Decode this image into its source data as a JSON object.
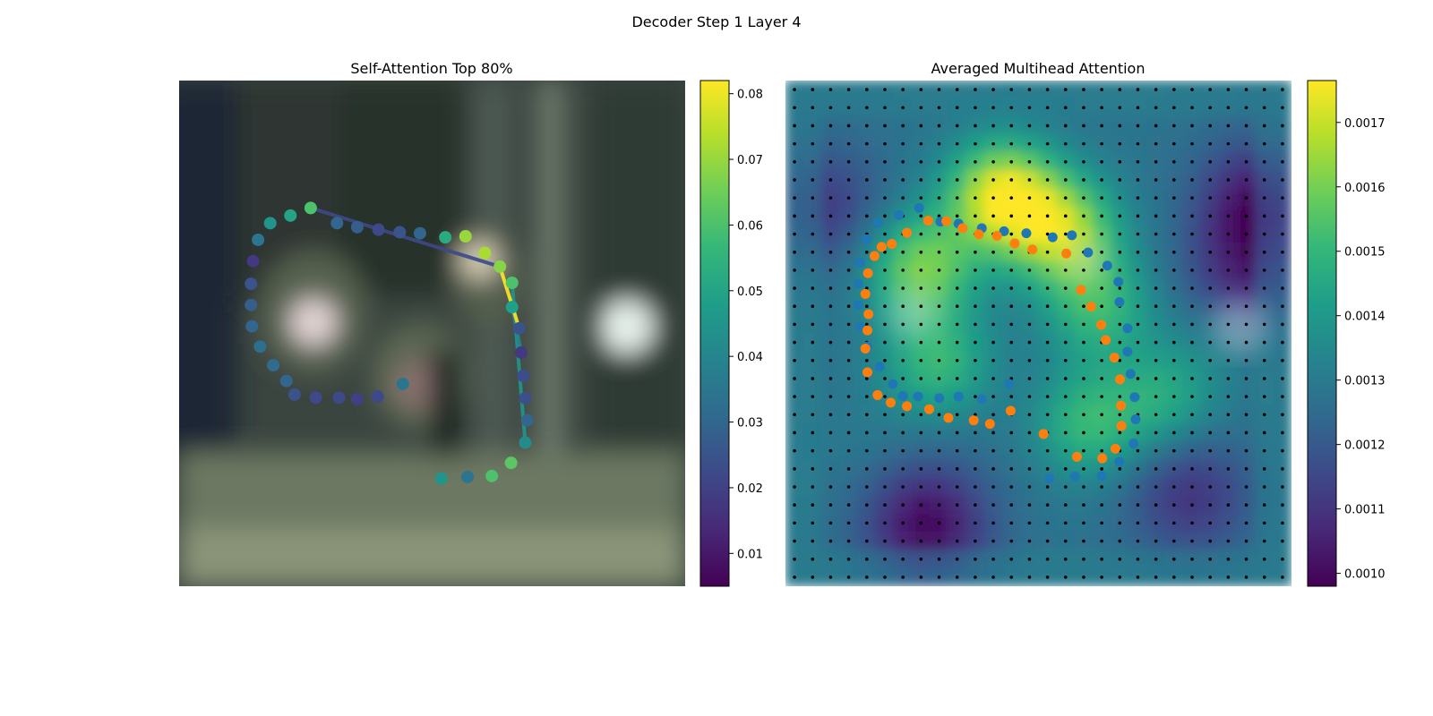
{
  "figure": {
    "suptitle": "Decoder Step 1 Layer 4"
  },
  "colors": {
    "viridis": [
      "#440154",
      "#482878",
      "#3e4989",
      "#31688e",
      "#26828e",
      "#1f9e89",
      "#35b779",
      "#6ece58",
      "#b5de2b",
      "#fde725"
    ],
    "series_blue": "#1f77b4",
    "series_orange": "#ff7f0e",
    "grid_dot": "#000000",
    "photo_dark": "#2a3330",
    "photo_mid": "#4a5548"
  },
  "chart_data": [
    {
      "type": "scatter",
      "title": "Self-Attention Top 80%",
      "background": "blurred street-scene photo",
      "xlim": [
        0,
        1
      ],
      "ylim": [
        0,
        1
      ],
      "colorbar": {
        "min": 0.005,
        "max": 0.082,
        "ticks": [
          0.01,
          0.02,
          0.03,
          0.04,
          0.05,
          0.06,
          0.07,
          0.08
        ],
        "tick_labels": [
          "0.01",
          "0.02",
          "0.03",
          "0.04",
          "0.05",
          "0.06",
          "0.07",
          "0.08"
        ]
      },
      "points": [
        {
          "x": 0.518,
          "y": 0.787,
          "v": 0.045
        },
        {
          "x": 0.57,
          "y": 0.784,
          "v": 0.035
        },
        {
          "x": 0.618,
          "y": 0.782,
          "v": 0.06
        },
        {
          "x": 0.656,
          "y": 0.756,
          "v": 0.062
        },
        {
          "x": 0.684,
          "y": 0.716,
          "v": 0.042
        },
        {
          "x": 0.688,
          "y": 0.672,
          "v": 0.03
        },
        {
          "x": 0.684,
          "y": 0.628,
          "v": 0.024
        },
        {
          "x": 0.68,
          "y": 0.584,
          "v": 0.023
        },
        {
          "x": 0.676,
          "y": 0.538,
          "v": 0.018
        },
        {
          "x": 0.672,
          "y": 0.49,
          "v": 0.025
        },
        {
          "x": 0.658,
          "y": 0.448,
          "v": 0.048
        },
        {
          "x": 0.658,
          "y": 0.4,
          "v": 0.06
        },
        {
          "x": 0.634,
          "y": 0.368,
          "v": 0.068
        },
        {
          "x": 0.604,
          "y": 0.341,
          "v": 0.072
        },
        {
          "x": 0.566,
          "y": 0.308,
          "v": 0.07
        },
        {
          "x": 0.526,
          "y": 0.31,
          "v": 0.052
        },
        {
          "x": 0.476,
          "y": 0.302,
          "v": 0.03
        },
        {
          "x": 0.436,
          "y": 0.3,
          "v": 0.025
        },
        {
          "x": 0.394,
          "y": 0.295,
          "v": 0.022
        },
        {
          "x": 0.352,
          "y": 0.29,
          "v": 0.028
        },
        {
          "x": 0.312,
          "y": 0.282,
          "v": 0.03
        },
        {
          "x": 0.26,
          "y": 0.252,
          "v": 0.06
        },
        {
          "x": 0.22,
          "y": 0.267,
          "v": 0.05
        },
        {
          "x": 0.18,
          "y": 0.282,
          "v": 0.045
        },
        {
          "x": 0.156,
          "y": 0.315,
          "v": 0.035
        },
        {
          "x": 0.146,
          "y": 0.357,
          "v": 0.018
        },
        {
          "x": 0.142,
          "y": 0.402,
          "v": 0.025
        },
        {
          "x": 0.142,
          "y": 0.444,
          "v": 0.028
        },
        {
          "x": 0.144,
          "y": 0.486,
          "v": 0.03
        },
        {
          "x": 0.16,
          "y": 0.526,
          "v": 0.033
        },
        {
          "x": 0.186,
          "y": 0.563,
          "v": 0.032
        },
        {
          "x": 0.212,
          "y": 0.594,
          "v": 0.03
        },
        {
          "x": 0.228,
          "y": 0.621,
          "v": 0.025
        },
        {
          "x": 0.27,
          "y": 0.627,
          "v": 0.022
        },
        {
          "x": 0.316,
          "y": 0.627,
          "v": 0.022
        },
        {
          "x": 0.352,
          "y": 0.63,
          "v": 0.02
        },
        {
          "x": 0.392,
          "y": 0.625,
          "v": 0.022
        },
        {
          "x": 0.442,
          "y": 0.6,
          "v": 0.035
        }
      ],
      "edges": [
        {
          "from": [
            0.26,
            0.252
          ],
          "to": [
            0.634,
            0.368
          ],
          "v": 0.022
        },
        {
          "from": [
            0.684,
            0.716
          ],
          "to": [
            0.658,
            0.4
          ],
          "v": 0.045
        },
        {
          "from": [
            0.676,
            0.538
          ],
          "to": [
            0.658,
            0.448
          ],
          "v": 0.04
        },
        {
          "from": [
            0.672,
            0.49
          ],
          "to": [
            0.634,
            0.368
          ],
          "v": 0.082
        }
      ]
    },
    {
      "type": "heatmap",
      "title": "Averaged Multihead Attention",
      "xlim": [
        0,
        1
      ],
      "ylim": [
        0,
        1
      ],
      "colorbar": {
        "min": 0.00098,
        "max": 0.001765,
        "ticks": [
          0.001,
          0.0011,
          0.0012,
          0.0013,
          0.0014,
          0.0015,
          0.0016,
          0.0017
        ],
        "tick_labels": [
          "0.0010",
          "0.0011",
          "0.0012",
          "0.0013",
          "0.0014",
          "0.0015",
          "0.0016",
          "0.0017"
        ]
      },
      "grid": {
        "rows": 28,
        "cols": 28
      },
      "hotspots": [
        {
          "x": 0.43,
          "y": 0.23,
          "v": 0.00175
        },
        {
          "x": 0.55,
          "y": 0.3,
          "v": 0.00165
        },
        {
          "x": 0.27,
          "y": 0.37,
          "v": 0.0016
        },
        {
          "x": 0.3,
          "y": 0.56,
          "v": 0.0015
        },
        {
          "x": 0.62,
          "y": 0.45,
          "v": 0.0015
        },
        {
          "x": 0.14,
          "y": 0.72,
          "v": 0.0013
        },
        {
          "x": 0.6,
          "y": 0.68,
          "v": 0.0015
        },
        {
          "x": 0.75,
          "y": 0.63,
          "v": 0.00145
        },
        {
          "x": 0.87,
          "y": 0.48,
          "v": 0.0014
        }
      ],
      "coldspots": [
        {
          "x": 0.28,
          "y": 0.88,
          "v": 0.001
        },
        {
          "x": 0.8,
          "y": 0.82,
          "v": 0.0011
        },
        {
          "x": 0.94,
          "y": 0.25,
          "v": 0.001
        },
        {
          "x": 0.9,
          "y": 0.42,
          "v": 0.00105
        },
        {
          "x": 0.07,
          "y": 0.25,
          "v": 0.00112
        }
      ],
      "series": [
        {
          "color": "#1f77b4",
          "points": [
            [
              0.522,
              0.787
            ],
            [
              0.572,
              0.783
            ],
            [
              0.625,
              0.782
            ],
            [
              0.66,
              0.754
            ],
            [
              0.688,
              0.718
            ],
            [
              0.692,
              0.67
            ],
            [
              0.69,
              0.626
            ],
            [
              0.682,
              0.58
            ],
            [
              0.676,
              0.536
            ],
            [
              0.676,
              0.49
            ],
            [
              0.66,
              0.438
            ],
            [
              0.658,
              0.398
            ],
            [
              0.636,
              0.366
            ],
            [
              0.598,
              0.34
            ],
            [
              0.566,
              0.306
            ],
            [
              0.528,
              0.31
            ],
            [
              0.476,
              0.302
            ],
            [
              0.432,
              0.298
            ],
            [
              0.388,
              0.292
            ],
            [
              0.342,
              0.283
            ],
            [
              0.306,
              0.279
            ],
            [
              0.264,
              0.252
            ],
            [
              0.224,
              0.266
            ],
            [
              0.182,
              0.282
            ],
            [
              0.16,
              0.314
            ],
            [
              0.148,
              0.36
            ],
            [
              0.144,
              0.402
            ],
            [
              0.144,
              0.444
            ],
            [
              0.148,
              0.486
            ],
            [
              0.162,
              0.526
            ],
            [
              0.186,
              0.566
            ],
            [
              0.212,
              0.6
            ],
            [
              0.232,
              0.624
            ],
            [
              0.262,
              0.625
            ],
            [
              0.304,
              0.628
            ],
            [
              0.342,
              0.625
            ],
            [
              0.388,
              0.63
            ],
            [
              0.442,
              0.6
            ]
          ]
        },
        {
          "color": "#ff7f0e",
          "points": [
            [
              0.576,
              0.744
            ],
            [
              0.626,
              0.747
            ],
            [
              0.652,
              0.728
            ],
            [
              0.664,
              0.683
            ],
            [
              0.663,
              0.643
            ],
            [
              0.661,
              0.591
            ],
            [
              0.65,
              0.548
            ],
            [
              0.633,
              0.513
            ],
            [
              0.624,
              0.483
            ],
            [
              0.604,
              0.447
            ],
            [
              0.584,
              0.414
            ],
            [
              0.555,
              0.342
            ],
            [
              0.488,
              0.334
            ],
            [
              0.453,
              0.322
            ],
            [
              0.418,
              0.307
            ],
            [
              0.382,
              0.304
            ],
            [
              0.35,
              0.292
            ],
            [
              0.318,
              0.278
            ],
            [
              0.282,
              0.277
            ],
            [
              0.24,
              0.301
            ],
            [
              0.21,
              0.323
            ],
            [
              0.19,
              0.329
            ],
            [
              0.176,
              0.347
            ],
            [
              0.163,
              0.381
            ],
            [
              0.158,
              0.422
            ],
            [
              0.164,
              0.462
            ],
            [
              0.162,
              0.494
            ],
            [
              0.158,
              0.53
            ],
            [
              0.162,
              0.577
            ],
            [
              0.182,
              0.622
            ],
            [
              0.208,
              0.637
            ],
            [
              0.24,
              0.644
            ],
            [
              0.284,
              0.65
            ],
            [
              0.322,
              0.667
            ],
            [
              0.372,
              0.672
            ],
            [
              0.404,
              0.679
            ],
            [
              0.445,
              0.653
            ],
            [
              0.51,
              0.699
            ]
          ]
        }
      ]
    }
  ]
}
